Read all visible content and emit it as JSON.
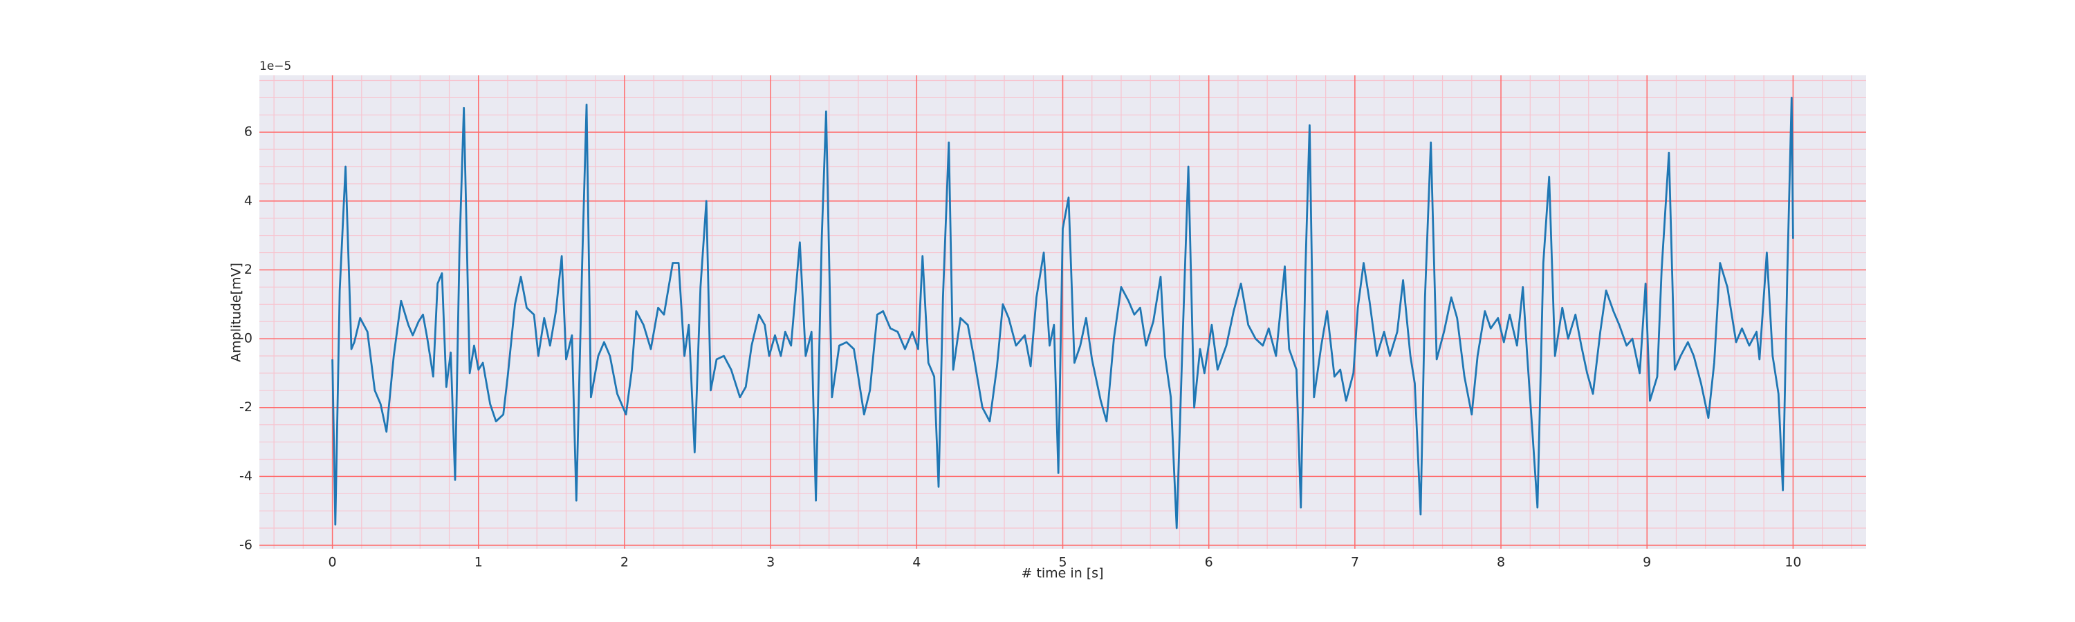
{
  "chart_data": {
    "type": "line",
    "x_label": "# time in [s]",
    "y_label": "Amplitude[mV]",
    "y_offset_label": "1e−5",
    "xlim": [
      -0.5,
      10.5
    ],
    "ylim": [
      -6.1,
      7.65
    ],
    "xticks": [
      0,
      1,
      2,
      3,
      4,
      5,
      6,
      7,
      8,
      9,
      10
    ],
    "yticks": [
      -6,
      -4,
      -2,
      0,
      2,
      4,
      6
    ],
    "grid": true,
    "grid_color": "#ff6b6b",
    "minor_grid": true,
    "minor_grid_color": "#f7c4cf",
    "background": "#eaeaf2",
    "x": [
      0,
      0.02,
      0.05,
      0.09,
      0.13,
      0.15,
      0.19,
      0.24,
      0.29,
      0.33,
      0.37,
      0.42,
      0.47,
      0.52,
      0.55,
      0.59,
      0.62,
      0.65,
      0.69,
      0.72,
      0.75,
      0.78,
      0.81,
      0.84,
      0.87,
      0.9,
      0.94,
      0.97,
      1.0,
      1.03,
      1.08,
      1.12,
      1.17,
      1.2,
      1.25,
      1.29,
      1.33,
      1.38,
      1.41,
      1.45,
      1.49,
      1.53,
      1.57,
      1.6,
      1.64,
      1.67,
      1.71,
      1.74,
      1.77,
      1.82,
      1.86,
      1.9,
      1.95,
      2.01,
      2.05,
      2.08,
      2.13,
      2.18,
      2.23,
      2.27,
      2.33,
      2.37,
      2.41,
      2.44,
      2.48,
      2.52,
      2.56,
      2.59,
      2.63,
      2.68,
      2.73,
      2.79,
      2.83,
      2.87,
      2.92,
      2.96,
      2.99,
      3.03,
      3.07,
      3.1,
      3.14,
      3.18,
      3.2,
      3.24,
      3.28,
      3.31,
      3.35,
      3.38,
      3.42,
      3.47,
      3.52,
      3.57,
      3.6,
      3.64,
      3.68,
      3.73,
      3.77,
      3.82,
      3.87,
      3.92,
      3.97,
      4.01,
      4.04,
      4.08,
      4.12,
      4.15,
      4.18,
      4.22,
      4.25,
      4.3,
      4.35,
      4.39,
      4.45,
      4.5,
      4.55,
      4.59,
      4.63,
      4.68,
      4.74,
      4.78,
      4.82,
      4.87,
      4.91,
      4.94,
      4.97,
      5.0,
      5.04,
      5.08,
      5.12,
      5.16,
      5.2,
      5.26,
      5.3,
      5.35,
      5.4,
      5.45,
      5.49,
      5.53,
      5.57,
      5.62,
      5.67,
      5.7,
      5.74,
      5.78,
      5.82,
      5.86,
      5.9,
      5.94,
      5.97,
      6.02,
      6.06,
      6.12,
      6.17,
      6.22,
      6.27,
      6.32,
      6.37,
      6.41,
      6.46,
      6.52,
      6.55,
      6.6,
      6.63,
      6.66,
      6.69,
      6.72,
      6.77,
      6.81,
      6.86,
      6.9,
      6.94,
      6.99,
      7.02,
      7.06,
      7.1,
      7.15,
      7.2,
      7.24,
      7.29,
      7.33,
      7.38,
      7.41,
      7.45,
      7.48,
      7.52,
      7.56,
      7.61,
      7.66,
      7.7,
      7.75,
      7.8,
      7.84,
      7.89,
      7.93,
      7.98,
      8.02,
      8.06,
      8.11,
      8.15,
      8.18,
      8.22,
      8.25,
      8.29,
      8.33,
      8.37,
      8.42,
      8.46,
      8.51,
      8.55,
      8.59,
      8.63,
      8.68,
      8.72,
      8.77,
      8.81,
      8.86,
      8.9,
      8.95,
      8.99,
      9.02,
      9.07,
      9.1,
      9.15,
      9.19,
      9.23,
      9.28,
      9.32,
      9.37,
      9.42,
      9.46,
      9.5,
      9.55,
      9.61,
      9.65,
      9.7,
      9.75,
      9.77,
      9.82,
      9.86,
      9.9,
      9.93,
      9.96,
      9.99,
      10.0
    ],
    "series": [
      {
        "color": "#1f77b4",
        "values": [
          -0.6,
          -5.4,
          1.4,
          5.0,
          -0.3,
          -0.1,
          0.6,
          0.2,
          -1.5,
          -1.9,
          -2.7,
          -0.5,
          1.1,
          0.4,
          0.1,
          0.5,
          0.7,
          0.0,
          -1.1,
          1.6,
          1.9,
          -1.4,
          -0.4,
          -4.1,
          2.6,
          6.7,
          -1.0,
          -0.2,
          -0.9,
          -0.7,
          -1.9,
          -2.4,
          -2.2,
          -1.1,
          1.0,
          1.8,
          0.9,
          0.7,
          -0.5,
          0.6,
          -0.2,
          0.8,
          2.4,
          -0.6,
          0.1,
          -4.7,
          2.2,
          6.8,
          -1.7,
          -0.5,
          -0.1,
          -0.5,
          -1.6,
          -2.2,
          -0.9,
          0.8,
          0.4,
          -0.3,
          0.9,
          0.7,
          2.2,
          2.2,
          -0.5,
          0.4,
          -3.3,
          1.5,
          4.0,
          -1.5,
          -0.6,
          -0.5,
          -0.9,
          -1.7,
          -1.4,
          -0.2,
          0.7,
          0.4,
          -0.5,
          0.1,
          -0.5,
          0.2,
          -0.2,
          1.8,
          2.8,
          -0.5,
          0.2,
          -4.7,
          2.9,
          6.6,
          -1.7,
          -0.2,
          -0.1,
          -0.3,
          -1.1,
          -2.2,
          -1.5,
          0.7,
          0.8,
          0.3,
          0.2,
          -0.3,
          0.2,
          -0.3,
          2.4,
          -0.7,
          -1.1,
          -4.3,
          1.2,
          5.7,
          -0.9,
          0.6,
          0.4,
          -0.5,
          -2.0,
          -2.4,
          -0.8,
          1.0,
          0.6,
          -0.2,
          0.1,
          -0.8,
          1.2,
          2.5,
          -0.2,
          0.4,
          -3.9,
          3.2,
          4.1,
          -0.7,
          -0.2,
          0.6,
          -0.6,
          -1.8,
          -2.4,
          0.0,
          1.5,
          1.1,
          0.7,
          0.9,
          -0.2,
          0.5,
          1.8,
          -0.5,
          -1.7,
          -5.5,
          -0.1,
          5.0,
          -2.0,
          -0.3,
          -1.0,
          0.4,
          -0.9,
          -0.2,
          0.8,
          1.6,
          0.4,
          0.0,
          -0.2,
          0.3,
          -0.5,
          2.1,
          -0.3,
          -0.9,
          -4.9,
          1.8,
          6.2,
          -1.7,
          -0.2,
          0.8,
          -1.1,
          -0.9,
          -1.8,
          -1.0,
          0.9,
          2.2,
          1.1,
          -0.5,
          0.2,
          -0.5,
          0.2,
          1.7,
          -0.5,
          -1.3,
          -5.1,
          1.2,
          5.7,
          -0.6,
          0.2,
          1.2,
          0.6,
          -1.1,
          -2.2,
          -0.5,
          0.8,
          0.3,
          0.6,
          -0.1,
          0.7,
          -0.2,
          1.5,
          -0.5,
          -3.0,
          -4.9,
          2.2,
          4.7,
          -0.5,
          0.9,
          0.0,
          0.7,
          -0.2,
          -1.0,
          -1.6,
          0.2,
          1.4,
          0.8,
          0.4,
          -0.2,
          0.0,
          -1.0,
          1.6,
          -1.8,
          -1.1,
          2.0,
          5.4,
          -0.9,
          -0.5,
          -0.1,
          -0.5,
          -1.3,
          -2.3,
          -0.7,
          2.2,
          1.5,
          -0.1,
          0.3,
          -0.2,
          0.2,
          -0.6,
          2.5,
          -0.5,
          -1.6,
          -4.4,
          1.8,
          7.0,
          2.9
        ]
      }
    ]
  }
}
